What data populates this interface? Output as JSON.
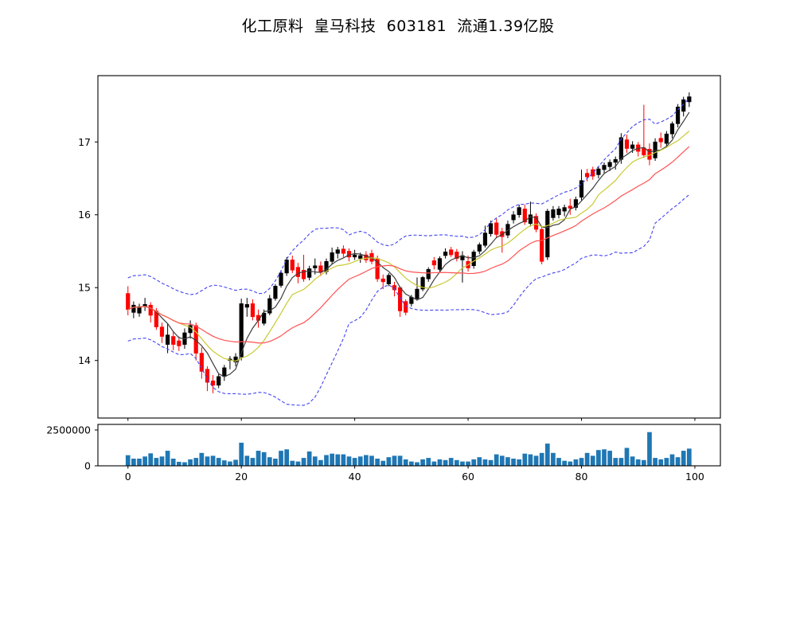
{
  "title": "化工原料  皇马科技  603181  流通1.39亿股",
  "chart_data": {
    "type": "candlestick+volume",
    "title": "化工原料  皇马科技  603181  流通1.39亿股",
    "x_axis": {
      "ticks": [
        0,
        20,
        40,
        60,
        80,
        100
      ],
      "range": [
        -5.3,
        104.5
      ]
    },
    "price_axis": {
      "ticks": [
        14,
        15,
        16,
        17
      ],
      "range": [
        13.21,
        17.91
      ]
    },
    "volume_axis": {
      "ticks": [
        {
          "value": 0,
          "label": "0"
        },
        {
          "value": 2500000,
          "label": "2500000"
        }
      ],
      "range": [
        0,
        2889000
      ]
    },
    "colors": {
      "up": "#000000",
      "down": "#ff0000",
      "volume": "#1f77b4",
      "ma_fast": "#3d3d3d",
      "ma_mid": "#c9c932",
      "ma_slow": "#ff5252",
      "bollinger": "#4444f0",
      "axis": "#000000"
    },
    "overlays": [
      {
        "id": "ma-fast-line",
        "type": "sma",
        "window": 5,
        "color_key": "ma_fast",
        "dash": null
      },
      {
        "id": "ma-mid-line",
        "type": "sma",
        "window": 10,
        "color_key": "ma_mid",
        "dash": null
      },
      {
        "id": "ma-slow-line",
        "type": "sma",
        "window": 20,
        "color_key": "ma_slow",
        "dash": null
      },
      {
        "id": "bollinger-upper-line",
        "type": "boll",
        "window": 20,
        "k": 2,
        "color_key": "bollinger",
        "dash": "4 2.5"
      },
      {
        "id": "bollinger-lower-line",
        "type": "boll",
        "window": 20,
        "k": -2,
        "color_key": "bollinger",
        "dash": "4 2.5"
      }
    ],
    "candles_ohlc": [
      [
        14.92,
        15.02,
        14.62,
        14.7
      ],
      [
        14.66,
        14.81,
        14.58,
        14.76
      ],
      [
        14.65,
        14.78,
        14.6,
        14.74
      ],
      [
        14.74,
        14.86,
        14.68,
        14.77
      ],
      [
        14.76,
        14.8,
        14.52,
        14.62
      ],
      [
        14.68,
        14.72,
        14.42,
        14.46
      ],
      [
        14.46,
        14.52,
        14.24,
        14.33
      ],
      [
        14.22,
        14.5,
        14.1,
        14.35
      ],
      [
        14.33,
        14.4,
        14.14,
        14.22
      ],
      [
        14.27,
        14.33,
        14.13,
        14.2
      ],
      [
        14.22,
        14.44,
        14.16,
        14.38
      ],
      [
        14.38,
        14.55,
        14.3,
        14.48
      ],
      [
        14.48,
        14.52,
        14.0,
        14.1
      ],
      [
        14.1,
        14.18,
        13.75,
        13.85
      ],
      [
        13.88,
        13.92,
        13.58,
        13.7
      ],
      [
        13.72,
        13.8,
        13.55,
        13.66
      ],
      [
        13.66,
        13.82,
        13.62,
        13.78
      ],
      [
        13.78,
        13.94,
        13.72,
        13.9
      ],
      [
        14.0,
        14.06,
        13.88,
        14.02
      ],
      [
        13.98,
        14.1,
        13.92,
        14.05
      ],
      [
        14.05,
        14.85,
        14.0,
        14.78
      ],
      [
        14.73,
        14.86,
        14.6,
        14.77
      ],
      [
        14.78,
        14.84,
        14.55,
        14.6
      ],
      [
        14.62,
        14.7,
        14.45,
        14.55
      ],
      [
        14.51,
        14.7,
        14.48,
        14.65
      ],
      [
        14.65,
        14.9,
        14.62,
        14.85
      ],
      [
        14.85,
        15.05,
        14.82,
        15.02
      ],
      [
        15.03,
        15.24,
        15.0,
        15.2
      ],
      [
        15.2,
        15.42,
        15.16,
        15.38
      ],
      [
        15.38,
        15.44,
        15.2,
        15.24
      ],
      [
        15.28,
        15.34,
        15.06,
        15.15
      ],
      [
        15.24,
        15.45,
        15.08,
        15.12
      ],
      [
        15.14,
        15.3,
        15.1,
        15.26
      ],
      [
        15.27,
        15.4,
        15.18,
        15.3
      ],
      [
        15.3,
        15.36,
        15.16,
        15.21
      ],
      [
        15.22,
        15.4,
        15.18,
        15.36
      ],
      [
        15.36,
        15.55,
        15.32,
        15.48
      ],
      [
        15.47,
        15.56,
        15.4,
        15.52
      ],
      [
        15.53,
        15.58,
        15.42,
        15.47
      ],
      [
        15.5,
        15.54,
        15.36,
        15.42
      ],
      [
        15.42,
        15.52,
        15.38,
        15.45
      ],
      [
        15.4,
        15.48,
        15.34,
        15.44
      ],
      [
        15.45,
        15.5,
        15.34,
        15.38
      ],
      [
        15.47,
        15.52,
        15.32,
        15.36
      ],
      [
        15.4,
        15.44,
        15.08,
        15.12
      ],
      [
        15.12,
        15.18,
        14.98,
        15.08
      ],
      [
        15.05,
        15.2,
        15.02,
        15.17
      ],
      [
        15.03,
        15.08,
        14.88,
        14.97
      ],
      [
        15.0,
        15.02,
        14.6,
        14.68
      ],
      [
        14.81,
        14.84,
        14.62,
        14.66
      ],
      [
        14.78,
        14.9,
        14.74,
        14.87
      ],
      [
        14.85,
        15.14,
        14.82,
        14.98
      ],
      [
        14.98,
        15.16,
        14.95,
        15.14
      ],
      [
        15.12,
        15.28,
        15.08,
        15.25
      ],
      [
        15.37,
        15.42,
        15.25,
        15.31
      ],
      [
        15.25,
        15.43,
        15.21,
        15.4
      ],
      [
        15.44,
        15.54,
        15.4,
        15.49
      ],
      [
        15.52,
        15.56,
        15.42,
        15.45
      ],
      [
        15.49,
        15.53,
        15.36,
        15.4
      ],
      [
        15.38,
        15.5,
        15.07,
        15.44
      ],
      [
        15.36,
        15.44,
        15.22,
        15.27
      ],
      [
        15.3,
        15.52,
        15.26,
        15.49
      ],
      [
        15.5,
        15.62,
        15.46,
        15.59
      ],
      [
        15.58,
        15.85,
        15.55,
        15.75
      ],
      [
        15.74,
        15.92,
        15.7,
        15.88
      ],
      [
        15.89,
        15.95,
        15.68,
        15.73
      ],
      [
        15.77,
        15.82,
        15.48,
        15.7
      ],
      [
        15.72,
        15.92,
        15.68,
        15.87
      ],
      [
        15.93,
        16.05,
        15.88,
        16.0
      ],
      [
        16.0,
        16.14,
        15.96,
        16.1
      ],
      [
        16.08,
        16.14,
        15.86,
        15.9
      ],
      [
        15.88,
        16.18,
        15.84,
        16.0
      ],
      [
        15.98,
        16.02,
        15.76,
        15.8
      ],
      [
        15.8,
        15.84,
        15.32,
        15.36
      ],
      [
        15.42,
        16.08,
        15.38,
        16.05
      ],
      [
        15.96,
        16.12,
        15.92,
        16.07
      ],
      [
        16.0,
        16.12,
        15.95,
        16.08
      ],
      [
        16.05,
        16.14,
        15.98,
        16.1
      ],
      [
        16.12,
        16.22,
        16.0,
        16.09
      ],
      [
        16.1,
        16.25,
        16.06,
        16.21
      ],
      [
        16.24,
        16.62,
        16.2,
        16.47
      ],
      [
        16.57,
        16.63,
        16.46,
        16.52
      ],
      [
        16.62,
        16.66,
        16.48,
        16.53
      ],
      [
        16.55,
        16.66,
        16.5,
        16.63
      ],
      [
        16.62,
        16.72,
        16.56,
        16.68
      ],
      [
        16.66,
        16.76,
        16.6,
        16.72
      ],
      [
        16.72,
        16.8,
        16.62,
        16.76
      ],
      [
        16.76,
        17.12,
        16.7,
        17.06
      ],
      [
        17.03,
        17.1,
        16.85,
        16.91
      ],
      [
        16.91,
        17.01,
        16.85,
        16.96
      ],
      [
        16.96,
        17.0,
        16.8,
        16.87
      ],
      [
        16.92,
        17.51,
        16.78,
        16.82
      ],
      [
        16.9,
        16.98,
        16.68,
        16.76
      ],
      [
        16.78,
        17.05,
        16.74,
        17.0
      ],
      [
        17.05,
        17.13,
        16.92,
        17.0
      ],
      [
        16.98,
        17.15,
        16.94,
        17.11
      ],
      [
        17.11,
        17.28,
        17.05,
        17.25
      ],
      [
        17.25,
        17.52,
        17.2,
        17.48
      ],
      [
        17.42,
        17.62,
        17.35,
        17.58
      ],
      [
        17.55,
        17.68,
        17.48,
        17.62
      ]
    ],
    "volume": [
      740000,
      500000,
      500000,
      650000,
      870000,
      550000,
      650000,
      1050000,
      500000,
      280000,
      250000,
      450000,
      550000,
      900000,
      650000,
      700000,
      550000,
      380000,
      300000,
      420000,
      1610000,
      700000,
      550000,
      1050000,
      950000,
      600000,
      500000,
      1050000,
      1150000,
      350000,
      300000,
      550000,
      1000000,
      650000,
      400000,
      750000,
      850000,
      800000,
      800000,
      650000,
      550000,
      650000,
      750000,
      700000,
      500000,
      350000,
      600000,
      700000,
      700000,
      450000,
      300000,
      250000,
      450000,
      550000,
      300000,
      450000,
      400000,
      550000,
      400000,
      300000,
      300000,
      450000,
      600000,
      450000,
      400000,
      800000,
      700000,
      600000,
      500000,
      450000,
      850000,
      800000,
      700000,
      900000,
      1550000,
      900000,
      550000,
      350000,
      300000,
      450000,
      550000,
      900000,
      700000,
      1100000,
      1150000,
      1050000,
      550000,
      550000,
      1250000,
      650000,
      450000,
      400000,
      2350000,
      550000,
      450000,
      550000,
      800000,
      600000,
      1050000,
      1200000
    ]
  }
}
